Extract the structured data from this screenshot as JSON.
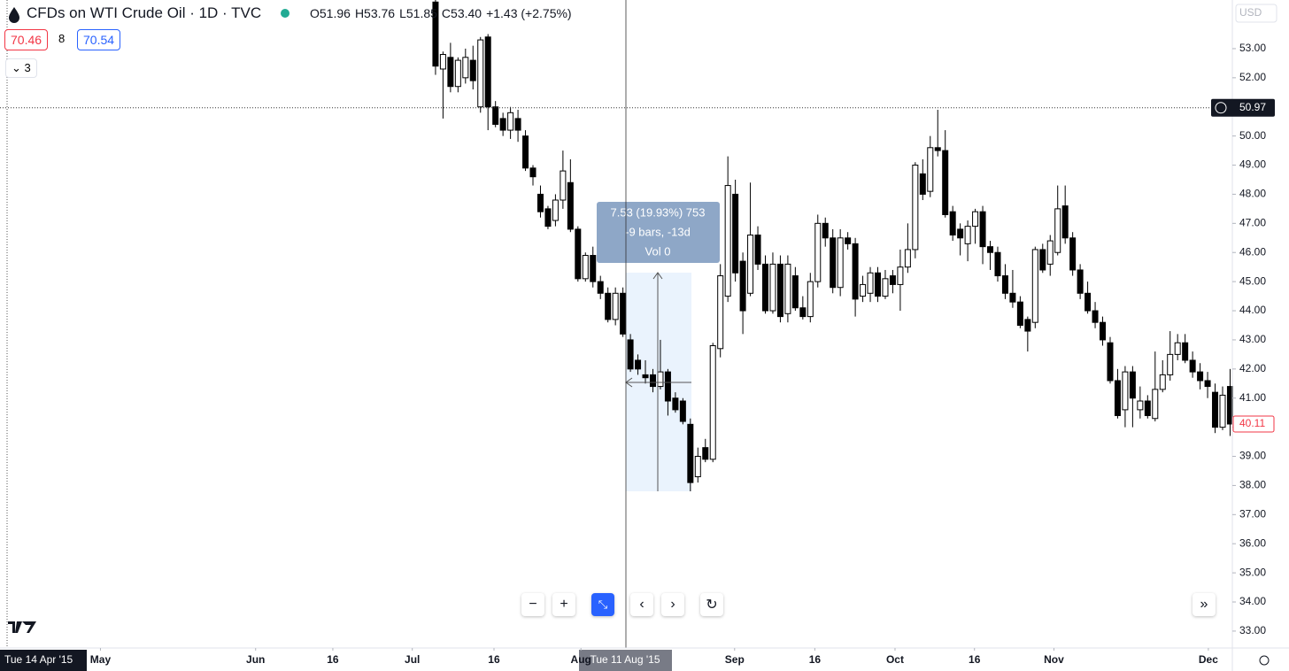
{
  "header": {
    "title": "CFDs on WTI Crude Oil · 1D · TVC",
    "open": "O51.96",
    "high": "H53.76",
    "low": "L51.85",
    "close": "C53.40",
    "change": "+1.43 (+2.75%)"
  },
  "toolbar": {
    "sell": "70.46",
    "spread": "8",
    "buy": "70.54",
    "indicators_count": "3"
  },
  "currency": "USD",
  "measure": {
    "line1": "7.53 (19.93%) 753",
    "line2": "-9 bars, -13d",
    "line3": "Vol 0"
  },
  "crosshair_date": "Tue 11 Aug '15",
  "left_date": "Tue 14 Apr '15",
  "chart_data": {
    "type": "candlestick",
    "up_color": "#ffffff",
    "down_color": "#000000",
    "open": [
      54.6,
      52.3,
      52.7,
      51.7,
      52.0,
      52.6,
      51.0,
      53.4,
      51.0,
      50.6,
      50.2,
      50.6,
      50.0,
      48.9,
      48.0,
      47.5,
      47.1,
      47.8,
      48.4,
      46.8,
      45.1,
      45.9,
      45.0,
      44.6,
      43.7,
      44.6,
      43.0,
      42.3,
      41.8,
      41.8,
      41.4,
      41.9,
      41.0,
      40.9,
      40.1,
      38.3,
      39.3,
      38.9,
      42.7,
      44.5,
      48.0,
      45.7,
      44.6,
      46.6,
      45.6,
      44.0,
      45.6,
      43.9,
      45.2,
      44.1,
      43.8,
      45.0,
      47.0,
      46.5,
      44.8,
      46.5,
      46.3,
      44.5,
      44.6,
      45.3,
      44.5,
      45.2,
      44.9,
      45.5,
      46.1,
      48.7,
      48.1,
      49.6,
      49.5,
      47.4,
      46.8,
      46.3,
      46.9,
      47.4,
      46.2,
      46.0,
      45.2,
      44.6,
      44.3,
      43.7,
      43.6,
      46.1,
      45.6,
      46.0,
      47.6,
      46.5,
      45.4,
      44.6,
      44.0,
      43.6,
      42.9,
      41.6,
      40.6,
      41.9,
      40.6,
      40.9,
      40.3,
      41.3,
      41.8,
      42.5,
      42.9,
      42.3,
      41.9,
      41.6,
      41.2,
      40.0,
      41.4
    ],
    "high": [
      54.7,
      52.9,
      53.2,
      52.7,
      53.0,
      53.1,
      53.4,
      53.5,
      51.2,
      50.8,
      51.0,
      50.9,
      50.2,
      49.0,
      48.3,
      47.6,
      48.0,
      49.5,
      49.2,
      46.9,
      46.0,
      46.2,
      45.2,
      44.8,
      44.8,
      44.8,
      43.2,
      42.5,
      42.3,
      42.0,
      43.0,
      42.0,
      41.2,
      41.0,
      40.3,
      39.3,
      39.6,
      42.9,
      45.6,
      49.3,
      48.5,
      46.0,
      48.4,
      46.9,
      45.9,
      46.0,
      45.9,
      45.9,
      45.5,
      44.5,
      45.3,
      47.3,
      47.2,
      46.8,
      46.8,
      46.7,
      46.5,
      45.2,
      45.5,
      45.5,
      45.4,
      45.4,
      46.1,
      47.0,
      49.1,
      49.2,
      50.0,
      50.9,
      50.2,
      47.6,
      47.0,
      47.1,
      47.5,
      47.6,
      46.4,
      46.2,
      45.6,
      45.4,
      44.5,
      43.8,
      46.2,
      46.3,
      46.6,
      48.3,
      48.3,
      46.7,
      45.6,
      45.0,
      44.3,
      43.8,
      43.1,
      42.0,
      42.1,
      42.1,
      41.4,
      41.1,
      42.6,
      42.3,
      43.3,
      43.2,
      43.2,
      42.6,
      42.2,
      41.9,
      41.5,
      41.4,
      42.0
    ],
    "low": [
      52.1,
      50.6,
      51.5,
      51.5,
      51.8,
      51.6,
      50.8,
      50.2,
      50.3,
      50.0,
      49.9,
      49.8,
      48.8,
      48.3,
      47.2,
      46.8,
      46.9,
      47.5,
      46.7,
      45.0,
      45.0,
      44.8,
      44.4,
      43.6,
      43.5,
      43.1,
      41.9,
      41.8,
      41.5,
      41.2,
      41.3,
      40.4,
      40.5,
      40.1,
      37.8,
      38.1,
      38.8,
      38.8,
      42.4,
      44.3,
      45.0,
      43.2,
      44.5,
      45.4,
      43.9,
      43.9,
      43.6,
      43.6,
      44.0,
      43.7,
      43.6,
      44.8,
      46.2,
      44.6,
      44.5,
      46.1,
      43.8,
      44.3,
      44.3,
      44.3,
      44.4,
      44.6,
      44.0,
      45.3,
      45.8,
      47.8,
      47.9,
      49.3,
      47.2,
      46.4,
      45.9,
      45.7,
      46.3,
      45.6,
      45.4,
      45.0,
      44.4,
      44.1,
      43.4,
      42.6,
      43.4,
      45.3,
      45.2,
      45.9,
      46.3,
      45.2,
      44.4,
      43.9,
      43.4,
      42.8,
      41.5,
      40.3,
      40.0,
      40.0,
      40.3,
      40.3,
      40.2,
      41.2,
      41.6,
      42.3,
      42.2,
      41.7,
      41.3,
      41.0,
      39.8,
      39.9,
      39.7
    ],
    "close": [
      52.4,
      52.8,
      51.7,
      52.6,
      52.7,
      51.9,
      53.3,
      51.0,
      50.4,
      50.2,
      50.8,
      50.2,
      48.9,
      48.6,
      47.4,
      46.9,
      47.8,
      48.8,
      46.8,
      45.1,
      45.9,
      45.0,
      44.6,
      43.7,
      44.6,
      43.2,
      42.0,
      42.0,
      41.7,
      41.4,
      41.9,
      40.9,
      40.6,
      40.2,
      38.1,
      39.0,
      38.9,
      42.8,
      45.2,
      48.3,
      45.3,
      44.0,
      46.6,
      45.6,
      44.0,
      45.6,
      43.8,
      45.6,
      44.1,
      43.8,
      45.0,
      47.0,
      46.5,
      44.8,
      46.5,
      46.3,
      44.4,
      44.9,
      45.3,
      44.5,
      45.1,
      44.9,
      45.5,
      46.1,
      49.0,
      48.0,
      49.6,
      49.5,
      47.3,
      46.6,
      46.5,
      46.9,
      47.4,
      46.2,
      46.0,
      45.2,
      44.6,
      44.3,
      43.5,
      43.3,
      46.1,
      45.4,
      46.4,
      47.5,
      46.5,
      45.4,
      44.6,
      44.0,
      43.6,
      43.0,
      41.6,
      40.4,
      41.9,
      41.0,
      40.9,
      40.4,
      41.3,
      41.8,
      42.5,
      42.9,
      42.3,
      41.9,
      41.6,
      41.4,
      40.0,
      41.1,
      40.11
    ],
    "xlim": [
      -58.1,
      106.3
    ],
    "xticks": [
      {
        "value": -44.7,
        "label": "May"
      },
      {
        "value": -24.0,
        "label": "Jun"
      },
      {
        "value": -13.7,
        "label": "16"
      },
      {
        "value": -3.1,
        "label": "Jul"
      },
      {
        "value": 7.8,
        "label": "16"
      },
      {
        "value": 19.4,
        "label": "Aug"
      },
      {
        "value": 39.9,
        "label": "Sep"
      },
      {
        "value": 50.6,
        "label": "16"
      },
      {
        "value": 61.3,
        "label": "Oct"
      },
      {
        "value": 71.9,
        "label": "16"
      },
      {
        "value": 82.5,
        "label": "Nov"
      },
      {
        "value": 103.1,
        "label": "Dec"
      }
    ],
    "ylim": [
      32.42,
      54.67
    ],
    "yticks": [
      {
        "value": 33,
        "label": "33.00"
      },
      {
        "value": 34,
        "label": "34.00"
      },
      {
        "value": 35,
        "label": "35.00"
      },
      {
        "value": 36,
        "label": "36.00"
      },
      {
        "value": 37,
        "label": "37.00"
      },
      {
        "value": 38,
        "label": "38.00"
      },
      {
        "value": 39,
        "label": "39.00"
      },
      {
        "value": 40,
        "label": "40.00"
      },
      {
        "value": 41,
        "label": "41.00"
      },
      {
        "value": 42,
        "label": "42.00"
      },
      {
        "value": 43,
        "label": "43.00"
      },
      {
        "value": 44,
        "label": "44.00"
      },
      {
        "value": 45,
        "label": "45.00"
      },
      {
        "value": 46,
        "label": "46.00"
      },
      {
        "value": 47,
        "label": "47.00"
      },
      {
        "value": 48,
        "label": "48.00"
      },
      {
        "value": 49,
        "label": "49.00"
      },
      {
        "value": 50,
        "label": "50.00"
      },
      {
        "value": 51,
        "label": "51.00"
      },
      {
        "value": 52,
        "label": "52.00"
      },
      {
        "value": 53,
        "label": "53.00"
      }
    ],
    "crosshair_price": 50.97,
    "last_price": 40.11
  }
}
